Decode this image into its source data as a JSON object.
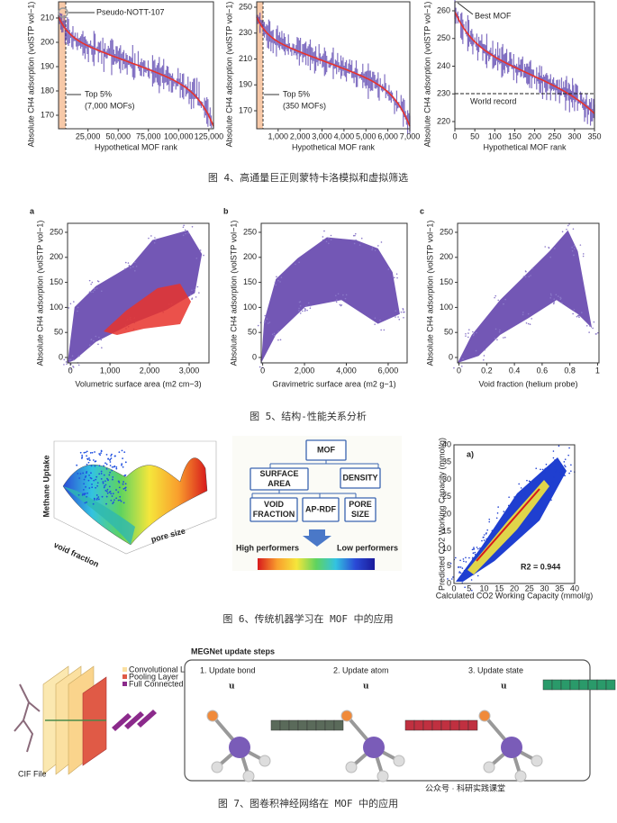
{
  "fig4": {
    "caption": "图 4、高通量巨正则蒙特卡洛模拟和虚拟筛选",
    "ylabel": "Absolute CH4 adsorption (volSTP vol−1)",
    "xlabel": "Hypothetical MOF rank",
    "panels": [
      {
        "yticks": [
          "170",
          "180",
          "190",
          "200",
          "210"
        ],
        "xticks": [
          "25,000",
          "50,000",
          "75,000",
          "100,000",
          "125,000"
        ],
        "notes": [
          "Pseudo-NOTT-107",
          "Top 5%",
          "(7,000 MOFs)"
        ]
      },
      {
        "yticks": [
          "170",
          "190",
          "210",
          "230",
          "250"
        ],
        "xticks": [
          "1,000",
          "2,000",
          "3,000",
          "4,000",
          "5,000",
          "6,000",
          "7,000"
        ],
        "notes": [
          "Top 5%",
          "(350 MOFs)"
        ]
      },
      {
        "yticks": [
          "220",
          "230",
          "240",
          "250",
          "260"
        ],
        "xticks": [
          "0",
          "50",
          "100",
          "150",
          "200",
          "250",
          "300",
          "350"
        ],
        "notes": [
          "Best MOF",
          "World record"
        ]
      }
    ]
  },
  "fig5": {
    "caption": "图 5、结构-性能关系分析",
    "ylabel": "Absolute CH4 adsorption (volSTP vol−1)",
    "panels": [
      {
        "letter": "a",
        "xlabel": "Volumetric surface area (m2 cm−3)",
        "yticks": [
          "0",
          "50",
          "100",
          "150",
          "200",
          "250"
        ],
        "xticks": [
          "0",
          "1,000",
          "2,000",
          "3,000"
        ]
      },
      {
        "letter": "b",
        "xlabel": "Gravimetric surface area (m2 g−1)",
        "yticks": [
          "0",
          "50",
          "100",
          "150",
          "200",
          "250"
        ],
        "xticks": [
          "0",
          "2,000",
          "4,000",
          "6,000"
        ]
      },
      {
        "letter": "c",
        "xlabel": "Void fraction (helium probe)",
        "yticks": [
          "0",
          "50",
          "100",
          "150",
          "200",
          "250"
        ],
        "xticks": [
          "0",
          "0.2",
          "0.4",
          "0.6",
          "0.8",
          "1"
        ]
      }
    ]
  },
  "fig6": {
    "caption": "图 6、传统机器学习在 MOF 中的应用",
    "surface": {
      "ylabel": "Methane Uptake",
      "xlabel": "void fraction",
      "zlabel": "pore size"
    },
    "tree": {
      "root": "MOF",
      "nodes": [
        "SURFACE AREA",
        "DENSITY",
        "VOID FRACTION",
        "AP-RDF",
        "PORE SIZE"
      ],
      "high": "High performers",
      "low": "Low performers"
    },
    "scatter": {
      "letter": "a)",
      "r2": "R2 = 0.944",
      "ylabel": "Predicted CO2 Working Capacity (mmol/g)",
      "xlabel": "Calculated CO2 Working Capacity (mmol/g)",
      "ticks": [
        "0",
        "5",
        "10",
        "15",
        "20",
        "25",
        "30",
        "35",
        "40"
      ]
    }
  },
  "fig7": {
    "caption": "图 7、图卷积神经网络在 MOF 中的应用",
    "cnn": {
      "legend": [
        "Convolutional Layer",
        "Pooling Layer",
        "Full Connected Layer"
      ],
      "file": "CIF File"
    },
    "megnet": {
      "title": "MEGNet update steps",
      "steps": [
        "1. Update bond",
        "2. Update atom",
        "3. Update state"
      ],
      "state": "u"
    },
    "watermark": "公众号 · 科研实践课堂"
  }
}
